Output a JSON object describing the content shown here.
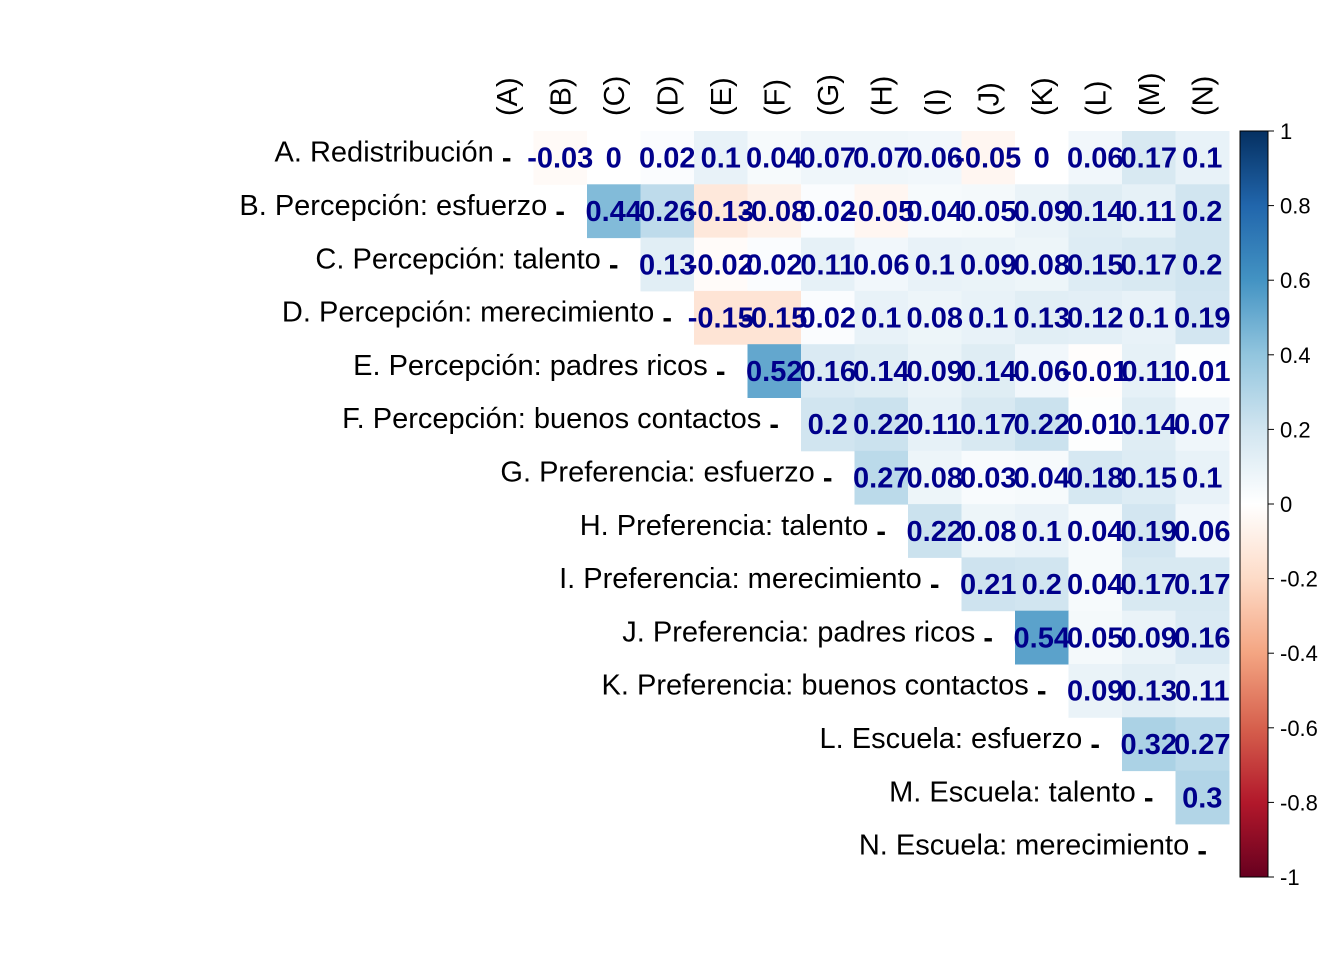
{
  "chart_data": {
    "type": "heatmap",
    "layout": "upper-triangle",
    "row_labels": [
      "A. Redistribución",
      "B. Percepción: esfuerzo",
      "C. Percepción: talento",
      "D. Percepción: merecimiento",
      "E. Percepción: padres ricos",
      "F. Percepción: buenos contactos",
      "G. Preferencia: esfuerzo",
      "H. Preferencia: talento",
      "I. Preferencia: merecimiento",
      "J. Preferencia: padres ricos",
      "K. Preferencia: buenos contactos",
      "L. Escuela: esfuerzo",
      "M. Escuela: talento",
      "N. Escuela: merecimiento"
    ],
    "col_labels": [
      "(A)",
      "(B)",
      "(C)",
      "(D)",
      "(E)",
      "(F)",
      "(G)",
      "(H)",
      "(I)",
      "(J)",
      "(K)",
      "(L)",
      "(M)",
      "(N)"
    ],
    "diagonal_symbol": "-",
    "values": [
      [
        null,
        -0.03,
        0,
        0.02,
        0.1,
        0.04,
        0.07,
        0.07,
        0.06,
        -0.05,
        0,
        0.06,
        0.17,
        0.1
      ],
      [
        null,
        null,
        0.44,
        0.26,
        -0.13,
        -0.08,
        0.02,
        -0.05,
        0.04,
        0.05,
        0.09,
        0.14,
        0.11,
        0.2
      ],
      [
        null,
        null,
        null,
        0.13,
        -0.02,
        0.02,
        0.11,
        0.06,
        0.1,
        0.09,
        0.08,
        0.15,
        0.17,
        0.2
      ],
      [
        null,
        null,
        null,
        null,
        -0.15,
        -0.15,
        0.02,
        0.1,
        0.08,
        0.1,
        0.13,
        0.12,
        0.1,
        0.19
      ],
      [
        null,
        null,
        null,
        null,
        null,
        0.52,
        0.16,
        0.14,
        0.09,
        0.14,
        0.06,
        -0.01,
        0.11,
        0.01
      ],
      [
        null,
        null,
        null,
        null,
        null,
        null,
        0.2,
        0.22,
        0.11,
        0.17,
        0.22,
        0.01,
        0.14,
        0.07
      ],
      [
        null,
        null,
        null,
        null,
        null,
        null,
        null,
        0.27,
        0.08,
        0.03,
        0.04,
        0.18,
        0.15,
        0.1
      ],
      [
        null,
        null,
        null,
        null,
        null,
        null,
        null,
        null,
        0.22,
        0.08,
        0.1,
        0.04,
        0.19,
        0.06
      ],
      [
        null,
        null,
        null,
        null,
        null,
        null,
        null,
        null,
        null,
        0.21,
        0.2,
        0.04,
        0.17,
        0.17
      ],
      [
        null,
        null,
        null,
        null,
        null,
        null,
        null,
        null,
        null,
        null,
        0.54,
        0.05,
        0.09,
        0.16
      ],
      [
        null,
        null,
        null,
        null,
        null,
        null,
        null,
        null,
        null,
        null,
        null,
        0.09,
        0.13,
        0.11
      ],
      [
        null,
        null,
        null,
        null,
        null,
        null,
        null,
        null,
        null,
        null,
        null,
        null,
        0.32,
        0.27
      ],
      [
        null,
        null,
        null,
        null,
        null,
        null,
        null,
        null,
        null,
        null,
        null,
        null,
        null,
        0.3
      ],
      [
        null,
        null,
        null,
        null,
        null,
        null,
        null,
        null,
        null,
        null,
        null,
        null,
        null,
        null
      ]
    ],
    "colorbar": {
      "range": [
        -1,
        1
      ],
      "tick_labels": [
        "1",
        "0.8",
        "0.6",
        "0.4",
        "0.2",
        "0",
        "-0.2",
        "-0.4",
        "-0.6",
        "-0.8",
        "-1"
      ],
      "tick_values": [
        1,
        0.8,
        0.6,
        0.4,
        0.2,
        0,
        -0.2,
        -0.4,
        -0.6,
        -0.8,
        -1
      ],
      "color_stops": [
        "#67001F",
        "#B2182B",
        "#D6604D",
        "#F4A582",
        "#FDDBC7",
        "#FFFFFF",
        "#D1E5F0",
        "#92C5DE",
        "#4393C3",
        "#2166AC",
        "#053061"
      ]
    },
    "value_label_color": "#00008B"
  }
}
